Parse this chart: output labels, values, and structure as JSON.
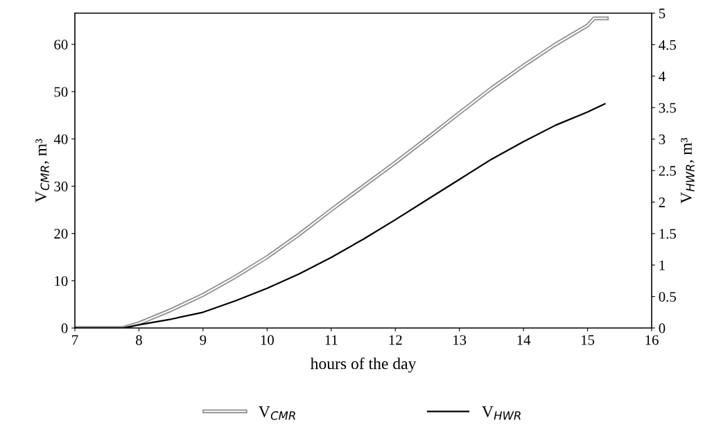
{
  "chart_data": {
    "type": "line",
    "xlabel": "hours of the day",
    "ylabel": "V$_{CMR}$, m³",
    "y2label": "V$_{HWR}$, m³",
    "xlim": [
      7,
      16
    ],
    "xticks": [
      7,
      8,
      9,
      10,
      11,
      12,
      13,
      14,
      15,
      16
    ],
    "ylim": [
      0,
      66.6
    ],
    "yticks": [
      0,
      10,
      20,
      30,
      40,
      50,
      60
    ],
    "y2lim": [
      0,
      5
    ],
    "y2ticks": [
      0,
      0.5,
      1,
      1.5,
      2,
      2.5,
      3,
      3.5,
      4,
      4.5,
      5
    ],
    "grid": false,
    "legend": "bottom",
    "marker": "none",
    "line_style": "solid",
    "series": [
      {
        "name": "V$_{CMR}$",
        "color": "#8c8c8c",
        "x": [
          7,
          7.75,
          8,
          8.5,
          9,
          9.5,
          10,
          10.5,
          11,
          11.5,
          12,
          12.5,
          13,
          13.5,
          14,
          14.5,
          15,
          15.1,
          15.3
        ],
        "values": [
          0,
          0,
          1,
          3.8,
          7,
          10.8,
          15,
          19.8,
          25,
          30,
          35,
          40.2,
          45.5,
          50.7,
          55.5,
          60,
          64,
          65.5,
          65.5
        ]
      },
      {
        "name": "V$_{HWR}$",
        "color": "#000000",
        "axis": "y2",
        "x": [
          7,
          7.75,
          8,
          8.5,
          9,
          9.5,
          10,
          10.5,
          11,
          11.5,
          12,
          12.5,
          13,
          13.5,
          14,
          14.5,
          15,
          15.27
        ],
        "values": [
          0,
          0,
          0.05,
          0.14,
          0.25,
          0.43,
          0.63,
          0.86,
          1.12,
          1.41,
          1.72,
          2.04,
          2.36,
          2.68,
          2.96,
          3.22,
          3.43,
          3.56
        ]
      }
    ]
  }
}
